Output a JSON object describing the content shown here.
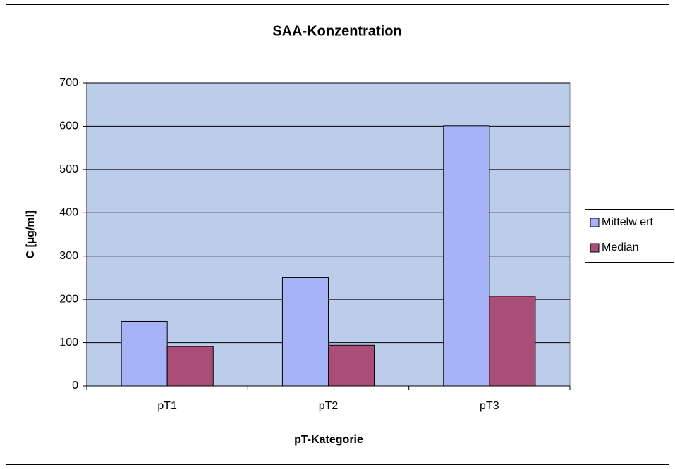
{
  "chart_data": {
    "type": "bar",
    "title": "SAA-Konzentration",
    "x_label": "pT-Kategorie",
    "y_label": "C [µg/ml]",
    "categories": [
      "pT1",
      "pT2",
      "pT3"
    ],
    "series": [
      {
        "name": "Mittelw ert",
        "color": "#a6b4f7",
        "values": [
          149,
          250,
          601
        ]
      },
      {
        "name": "Median",
        "color": "#a94f77",
        "values": [
          91,
          94,
          207
        ]
      }
    ],
    "ylim": [
      0,
      700
    ],
    "yticks": [
      0,
      100,
      200,
      300,
      400,
      500,
      600,
      700
    ],
    "grid": true,
    "legend": "right",
    "plot_background": "#bccdeb"
  }
}
